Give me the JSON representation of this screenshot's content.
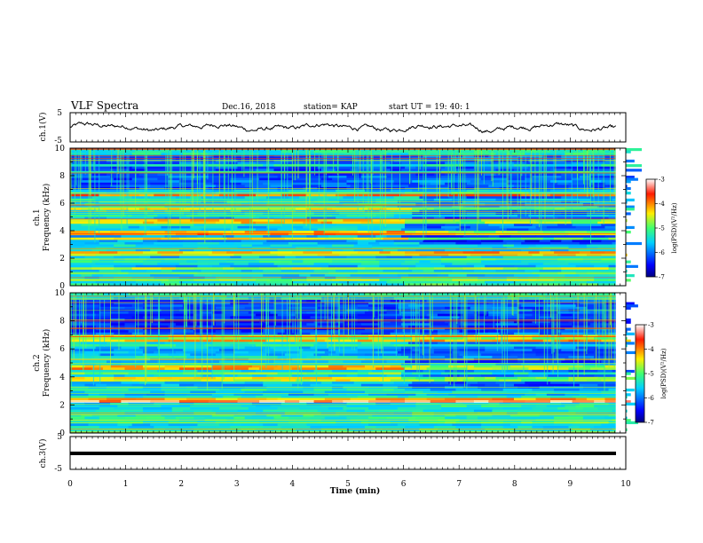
{
  "header": {
    "title": "VLF Spectra",
    "date": "Dec.16, 2018",
    "station": "station= KAP",
    "start": "start  UT =   19: 40: 1"
  },
  "chart_data": {
    "type": "heatmap",
    "x_axis": {
      "label": "Time  (min)",
      "range": [
        0,
        10
      ],
      "ticks": [
        0,
        1,
        2,
        3,
        4,
        5,
        6,
        7,
        8,
        9,
        10
      ]
    },
    "panels": [
      {
        "id": "ch1-wave",
        "type": "line",
        "ylabel": "ch.1(V)",
        "ylim": [
          -5,
          5
        ],
        "ticks": [
          -5,
          5
        ]
      },
      {
        "id": "ch1-spec",
        "type": "heatmap",
        "ylabel": "ch.1\nFrequency  (kHz)",
        "ylim": [
          0,
          10
        ],
        "ticks": [
          0,
          2,
          4,
          6,
          8,
          10
        ],
        "colorbar": {
          "label": "log(PSD)(V²/Hz)",
          "range": [
            -7,
            -3
          ],
          "ticks": [
            -3,
            -4,
            -5,
            -6,
            -7
          ]
        },
        "change_time_min": 5.85
      },
      {
        "id": "ch2-spec",
        "type": "heatmap",
        "ylabel": "ch.2\nFrequency  (kHz)",
        "ylim": [
          0,
          10
        ],
        "ticks": [
          0,
          2,
          4,
          6,
          8,
          10
        ],
        "colorbar": {
          "label": "log(PSD)(V²/Hz)",
          "range": [
            -7,
            -3
          ],
          "ticks": [
            -3,
            -4,
            -5,
            -6,
            -7
          ]
        },
        "change_time_min": 5.85
      },
      {
        "id": "ch3-wave",
        "type": "line",
        "ylabel": "ch.3(V)",
        "ylim": [
          -5,
          5
        ],
        "ticks": [
          -5,
          5
        ],
        "constant_value": 0
      }
    ]
  },
  "labels": {
    "ch1_wave_y": "ch.1(V)",
    "ch1_spec_y1": "ch.1",
    "ch1_spec_y2": "Frequency  (kHz)",
    "ch2_spec_y1": "ch.2",
    "ch2_spec_y2": "Frequency  (kHz)",
    "ch3_wave_y": "ch.3(V)",
    "x_label": "Time  (min)",
    "cb_label": "log(PSD)(V²/Hz)"
  }
}
